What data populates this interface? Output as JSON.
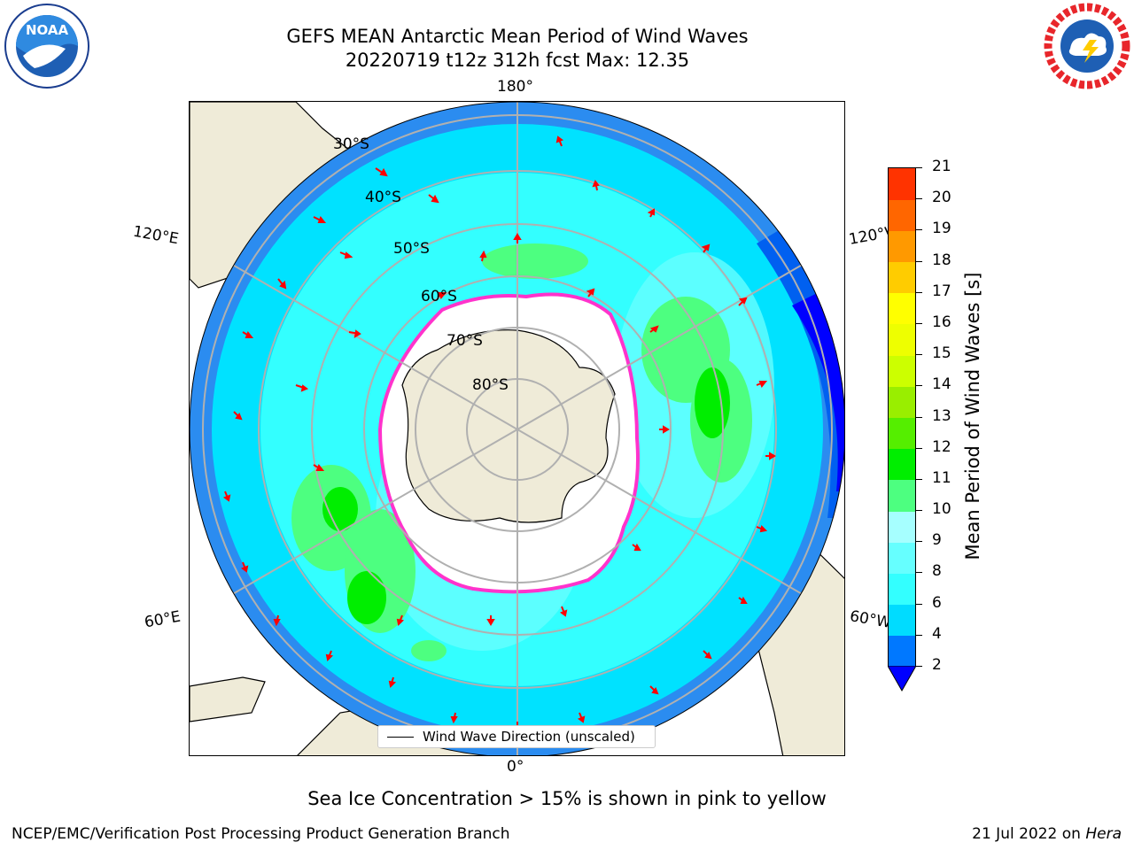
{
  "title": {
    "line1": "GEFS MEAN Antarctic Mean Period of Wind Waves",
    "line2": "20220719 t12z 312h fcst   Max: 12.35"
  },
  "map": {
    "lon_labels": {
      "top": "180°",
      "bottom": "0°",
      "left_upper": "120°E",
      "left_lower": "60°E",
      "right_upper": "120°W",
      "right_lower": "60°W"
    },
    "lat_labels": [
      "30°S",
      "40°S",
      "50°S",
      "60°S",
      "70°S",
      "80°S"
    ],
    "legend_label": "Wind Wave Direction (unscaled)",
    "colors": {
      "land": "#efebd8",
      "ice": "#ffffff",
      "ice_edge": "#ff33cc",
      "arrow": "#ff0000",
      "grid": "#b0b0b0"
    }
  },
  "colorbar": {
    "label": "Mean Period of Wind Waves [s]",
    "ticks": [
      "2",
      "4",
      "6",
      "8",
      "9",
      "10",
      "11",
      "12",
      "13",
      "14",
      "15",
      "16",
      "17",
      "18",
      "19",
      "20",
      "21"
    ],
    "colors": [
      "#0078ff",
      "#00dcff",
      "#33ffff",
      "#66ffff",
      "#a6ffff",
      "#4dff80",
      "#00ee00",
      "#55ee00",
      "#99ee00",
      "#ccff00",
      "#eeff00",
      "#ffff00",
      "#ffcc00",
      "#ff9900",
      "#ff6600",
      "#ff3300",
      "#ff0000"
    ],
    "under_color": "#0000ff"
  },
  "caption": "Sea Ice Concentration > 15% is shown in pink to yellow",
  "footer": {
    "left": "NCEP/EMC/Verification Post Processing Product Generation Branch",
    "right_prefix": "21 Jul 2022 on ",
    "right_host": "Hera"
  },
  "logos": {
    "left": "NOAA",
    "right": "NATIONAL WEATHER SERVICE"
  }
}
